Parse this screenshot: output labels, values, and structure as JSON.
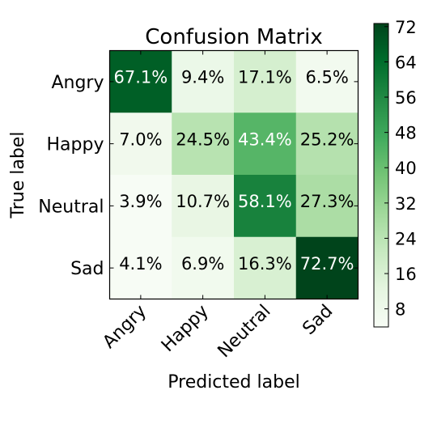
{
  "chart_data": {
    "type": "heatmap",
    "title": "Confusion Matrix",
    "xlabel": "Predicted label",
    "ylabel": "True label",
    "x_categories": [
      "Angry",
      "Happy",
      "Neutral",
      "Sad"
    ],
    "y_categories": [
      "Angry",
      "Happy",
      "Neutral",
      "Sad"
    ],
    "values": [
      [
        67.1,
        9.4,
        17.1,
        6.5
      ],
      [
        7.0,
        24.5,
        43.4,
        25.2
      ],
      [
        3.9,
        10.7,
        58.1,
        27.3
      ],
      [
        4.1,
        6.9,
        16.3,
        72.7
      ]
    ],
    "cell_labels": [
      [
        "67.1%",
        "9.4%",
        "17.1%",
        "6.5%"
      ],
      [
        "7.0%",
        "24.5%",
        "43.4%",
        "25.2%"
      ],
      [
        "3.9%",
        "10.7%",
        "58.1%",
        "27.3%"
      ],
      [
        "4.1%",
        "6.9%",
        "16.3%",
        "72.7%"
      ]
    ],
    "colormap": "Greens",
    "colorbar": {
      "range": [
        3.9,
        72.7
      ],
      "ticks": [
        8,
        16,
        24,
        32,
        40,
        48,
        56,
        64,
        72
      ]
    }
  }
}
